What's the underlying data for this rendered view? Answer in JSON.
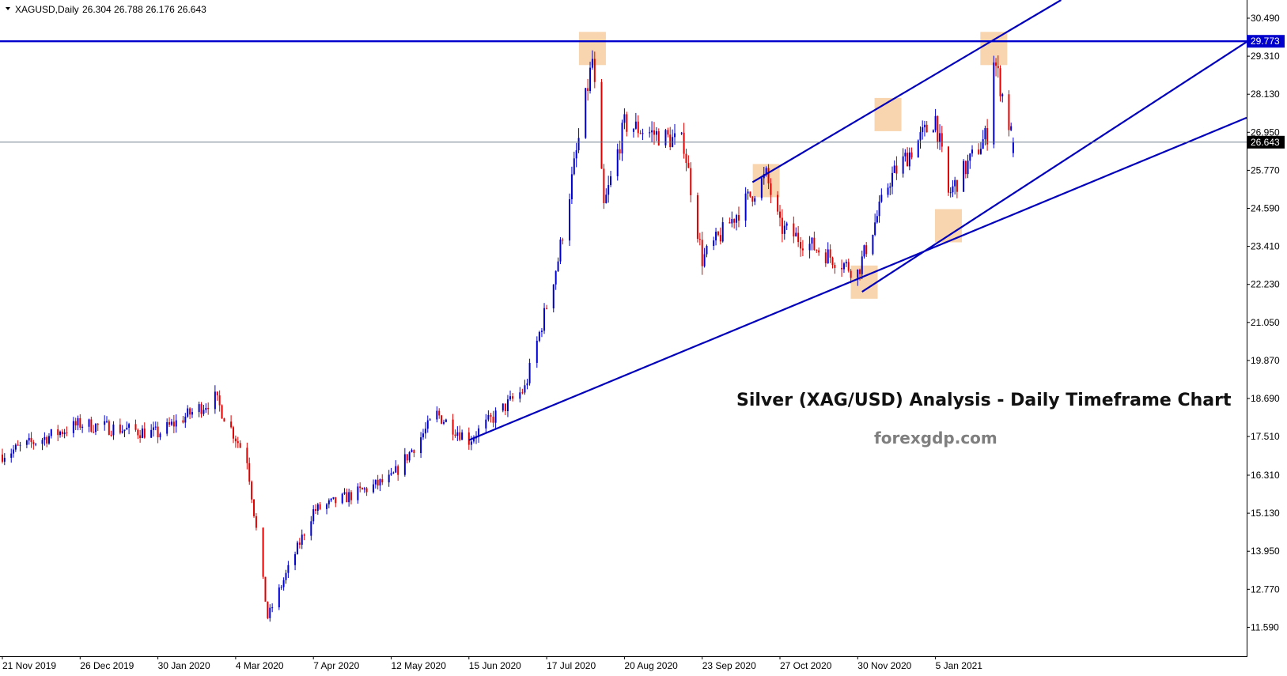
{
  "header": {
    "symbol": "XAGUSD,Daily",
    "ohlc": "26.304 26.788 26.176 26.643"
  },
  "chart_data": {
    "type": "candlestick",
    "symbol": "XAGUSD",
    "timeframe": "Daily",
    "y_ticks": [
      "30.490",
      "29.310",
      "28.130",
      "26.950",
      "25.770",
      "24.590",
      "23.410",
      "22.230",
      "21.050",
      "19.870",
      "18.690",
      "17.510",
      "16.310",
      "15.130",
      "13.950",
      "12.770",
      "11.590"
    ],
    "ylim": [
      11.2,
      31.0
    ],
    "x_ticks": [
      "21 Nov 2019",
      "26 Dec 2019",
      "30 Jan 2020",
      "4 Mar 2020",
      "7 Apr 2020",
      "12 May 2020",
      "15 Jun 2020",
      "17 Jul 2020",
      "20 Aug 2020",
      "23 Sep 2020",
      "27 Oct 2020",
      "30 Nov 2020",
      "5 Jan 2021"
    ],
    "price_labels": [
      {
        "value": 29.773,
        "label": "29.773",
        "color": "#0000cc",
        "style": "horizontal-line"
      },
      {
        "value": 26.643,
        "label": "26.643",
        "color": "#607080",
        "style": "current-price"
      }
    ],
    "anchors": [
      {
        "date": "21 Nov 2019",
        "price": 16.95
      },
      {
        "date": "26 Dec 2019",
        "price": 17.9
      },
      {
        "date": "30 Jan 2020",
        "price": 17.6
      },
      {
        "date": "24 Feb 2020",
        "price": 18.7
      },
      {
        "date": "9 Mar 2020",
        "price": 16.8
      },
      {
        "date": "18 Mar 2020",
        "price": 11.9
      },
      {
        "date": "7 Apr 2020",
        "price": 15.2
      },
      {
        "date": "12 May 2020",
        "price": 16.2
      },
      {
        "date": "1 Jun 2020",
        "price": 18.2
      },
      {
        "date": "15 Jun 2020",
        "price": 17.4
      },
      {
        "date": "8 Jul 2020",
        "price": 19.0
      },
      {
        "date": "22 Jul 2020",
        "price": 23.0
      },
      {
        "date": "6 Aug 2020",
        "price": 29.2
      },
      {
        "date": "11 Aug 2020",
        "price": 24.6
      },
      {
        "date": "20 Aug 2020",
        "price": 27.2
      },
      {
        "date": "15 Sep 2020",
        "price": 26.6
      },
      {
        "date": "23 Sep 2020",
        "price": 23.0
      },
      {
        "date": "12 Oct 2020",
        "price": 24.8
      },
      {
        "date": "21 Oct 2020",
        "price": 25.6
      },
      {
        "date": "27 Oct 2020",
        "price": 24.0
      },
      {
        "date": "30 Nov 2020",
        "price": 22.6
      },
      {
        "date": "15 Dec 2020",
        "price": 25.5
      },
      {
        "date": "5 Jan 2021",
        "price": 27.4
      },
      {
        "date": "11 Jan 2021",
        "price": 25.0
      },
      {
        "date": "29 Jan 2021",
        "price": 26.9
      },
      {
        "date": "1 Feb 2021",
        "price": 29.3
      },
      {
        "date": "10 Feb 2021",
        "price": 26.6
      }
    ],
    "trendlines": [
      {
        "name": "support-line-long",
        "from": {
          "date": "15 Jun 2020",
          "price": 17.4
        },
        "to": {
          "date": "10 Feb 2021",
          "price": 24.4
        }
      },
      {
        "name": "upper-channel-line",
        "from": {
          "date": "15 Oct 2020",
          "price": 25.4
        },
        "to": {
          "date": "3 Feb 2021",
          "price": 29.9
        }
      },
      {
        "name": "rising-support-line",
        "from": {
          "date": "2 Dec 2020",
          "price": 22.0
        },
        "to": {
          "date": "2 Feb 2021",
          "price": 24.7
        }
      }
    ],
    "highlights": [
      {
        "date": "6 Aug 2020",
        "price": 29.55
      },
      {
        "date": "21 Oct 2020",
        "price": 25.45
      },
      {
        "date": "3 Dec 2020",
        "price": 22.3
      },
      {
        "date": "14 Dec 2020",
        "price": 27.5
      },
      {
        "date": "11 Jan 2021",
        "price": 24.05
      },
      {
        "date": "1 Feb 2021",
        "price": 29.55
      }
    ]
  },
  "annotation": {
    "title": "Silver (XAG/USD) Analysis - Daily Timeframe Chart",
    "site": "forexgdp.com"
  },
  "colors": {
    "bull": "#0000cc",
    "bear": "#e00000",
    "line": "#0000bb",
    "highlight": "#f5c38c",
    "axis": "#000000"
  }
}
